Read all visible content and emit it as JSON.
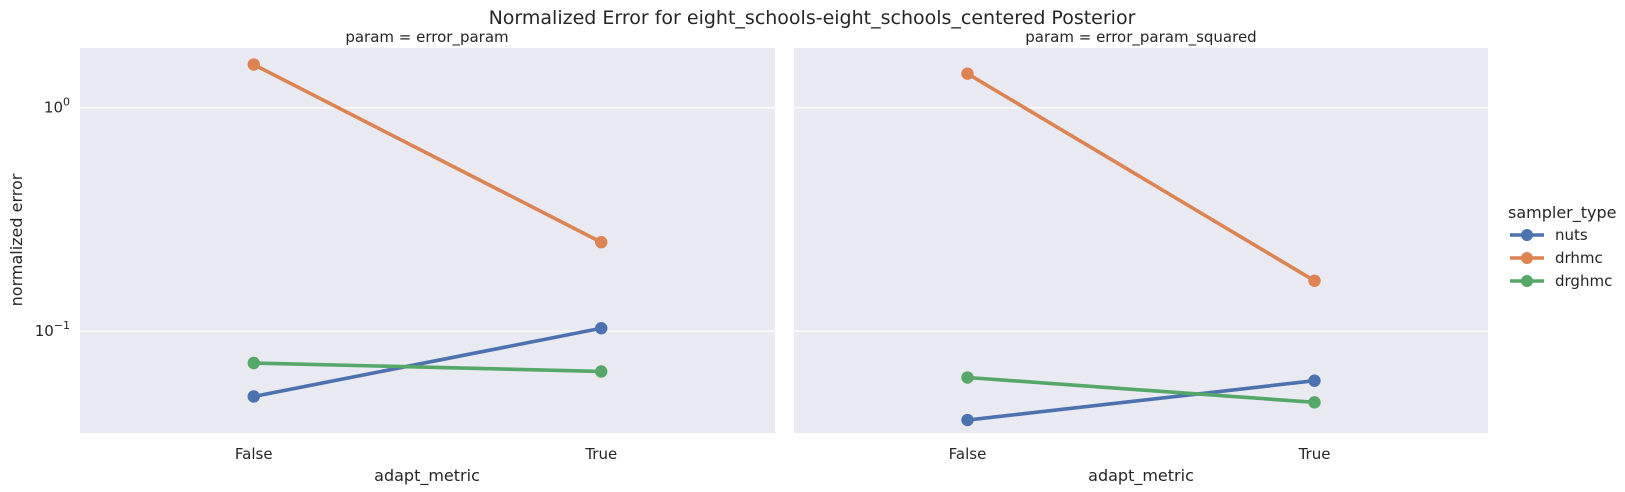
{
  "chart_data": {
    "type": "line",
    "title": "Normalized Error for eight_schools-eight_schools_centered Posterior",
    "xlabel": "adapt_metric",
    "ylabel": "normalized error",
    "yscale": "log",
    "ylim": [
      0.035,
      1.85
    ],
    "yticks": [
      {
        "value": 1.0,
        "base": "10",
        "exp": "0"
      },
      {
        "value": 0.1,
        "base": "10",
        "exp": "−1"
      }
    ],
    "categories": [
      "False",
      "True"
    ],
    "grid": true,
    "legend": {
      "title": "sampler_type",
      "placement": "right",
      "entries": [
        "nuts",
        "drhmc",
        "drghmc"
      ]
    },
    "colors": {
      "nuts": "#4c72b0",
      "drhmc": "#dd8452",
      "drghmc": "#55a868"
    },
    "panels": [
      {
        "title": "param = error_param",
        "series": [
          {
            "name": "nuts",
            "values": [
              0.051,
              0.103
            ]
          },
          {
            "name": "drhmc",
            "values": [
              1.56,
              0.25
            ]
          },
          {
            "name": "drghmc",
            "values": [
              0.072,
              0.066
            ]
          }
        ]
      },
      {
        "title": "param = error_param_squared",
        "series": [
          {
            "name": "nuts",
            "values": [
              0.04,
              0.06
            ]
          },
          {
            "name": "drhmc",
            "values": [
              1.42,
              0.168
            ]
          },
          {
            "name": "drghmc",
            "values": [
              0.062,
              0.048
            ]
          }
        ]
      }
    ]
  }
}
